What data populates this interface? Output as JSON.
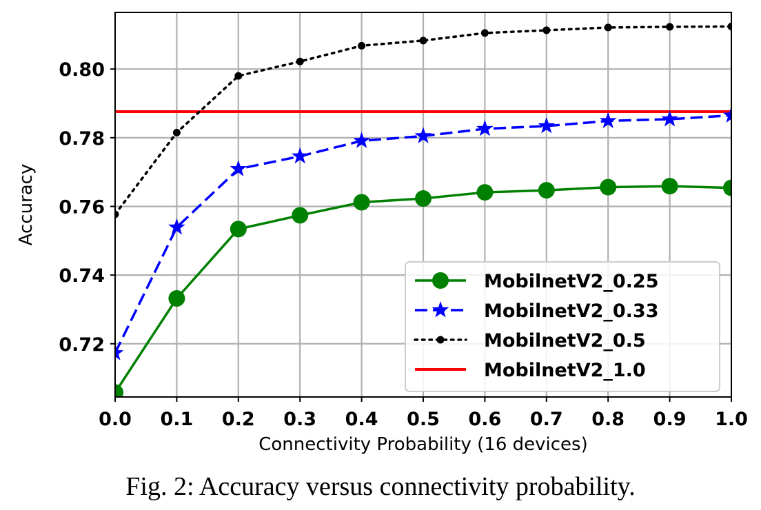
{
  "caption": "Fig. 2: Accuracy versus connectivity probability.",
  "chart_data": {
    "type": "line",
    "xlabel": "Connectivity Probability (16 devices)",
    "ylabel": "Accuracy",
    "xlim": [
      0.0,
      1.0
    ],
    "ylim": [
      0.7045,
      0.8165
    ],
    "xticks": [
      "0.0",
      "0.1",
      "0.2",
      "0.3",
      "0.4",
      "0.5",
      "0.6",
      "0.7",
      "0.8",
      "0.9",
      "1.0"
    ],
    "yticks": [
      "0.72",
      "0.74",
      "0.76",
      "0.78",
      "0.80"
    ],
    "grid": true,
    "legend_position": "lower-right",
    "x": [
      0.0,
      0.1,
      0.2,
      0.3,
      0.4,
      0.5,
      0.6,
      0.7,
      0.8,
      0.9,
      1.0
    ],
    "series": [
      {
        "name": "MobilnetV2_0.25",
        "color": "#008000",
        "style": "solid",
        "marker": "circle",
        "values": [
          0.7058,
          0.7332,
          0.7534,
          0.7574,
          0.7612,
          0.7623,
          0.7641,
          0.7647,
          0.7656,
          0.7659,
          0.7654
        ]
      },
      {
        "name": "MobilnetV2_0.33",
        "color": "#0000ff",
        "style": "dashed",
        "marker": "star",
        "values": [
          0.7173,
          0.7539,
          0.7709,
          0.7746,
          0.7791,
          0.7805,
          0.7826,
          0.7834,
          0.7849,
          0.7854,
          0.7865
        ]
      },
      {
        "name": "MobilnetV2_0.5",
        "color": "#000000",
        "style": "dotted",
        "marker": "dot",
        "values": [
          0.7577,
          0.7815,
          0.798,
          0.8022,
          0.8068,
          0.8083,
          0.8105,
          0.8113,
          0.8121,
          0.8123,
          0.8124
        ]
      },
      {
        "name": "MobilnetV2_1.0",
        "color": "#ff0000",
        "style": "solid",
        "marker": "none",
        "values": [
          0.7876,
          0.7876,
          0.7876,
          0.7876,
          0.7876,
          0.7876,
          0.7876,
          0.7876,
          0.7876,
          0.7876,
          0.7876
        ]
      }
    ]
  }
}
